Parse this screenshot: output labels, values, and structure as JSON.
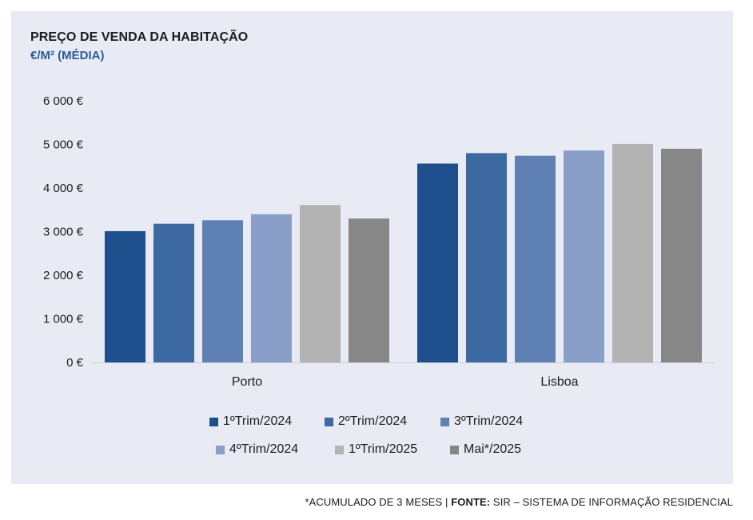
{
  "title": "PREÇO DE VENDA DA HABITAÇÃO",
  "subtitle": "€/M² (MÉDIA)",
  "footer": {
    "note": "*ACUMULADO DE 3 MESES | ",
    "source_label": "FONTE:",
    "source_text": " SIR – SISTEMA DE INFORMAÇÃO RESIDENCIAL"
  },
  "chart_data": {
    "type": "bar",
    "categories": [
      "Porto",
      "Lisboa"
    ],
    "ylim": [
      0,
      6000
    ],
    "yticks": [
      "0 €",
      "1 000 €",
      "2 000 €",
      "3 000 €",
      "4 000 €",
      "5 000 €",
      "6 000 €"
    ],
    "ytick_values": [
      0,
      1000,
      2000,
      3000,
      4000,
      5000,
      6000
    ],
    "grid": false,
    "legend_position": "bottom",
    "series": [
      {
        "name": "1ºTrim/2024",
        "color": "#1f4e8c",
        "values": [
          3010,
          4560
        ]
      },
      {
        "name": "2ºTrim/2024",
        "color": "#3d69a3",
        "values": [
          3180,
          4800
        ]
      },
      {
        "name": "3ºTrim/2024",
        "color": "#5f80b3",
        "values": [
          3260,
          4740
        ]
      },
      {
        "name": "4ºTrim/2024",
        "color": "#8a9fc7",
        "values": [
          3400,
          4860
        ]
      },
      {
        "name": "1ºTrim/2025",
        "color": "#b3b3b3",
        "values": [
          3610,
          5010
        ]
      },
      {
        "name": "Mai*/2025",
        "color": "#878787",
        "values": [
          3300,
          4900
        ]
      }
    ]
  }
}
